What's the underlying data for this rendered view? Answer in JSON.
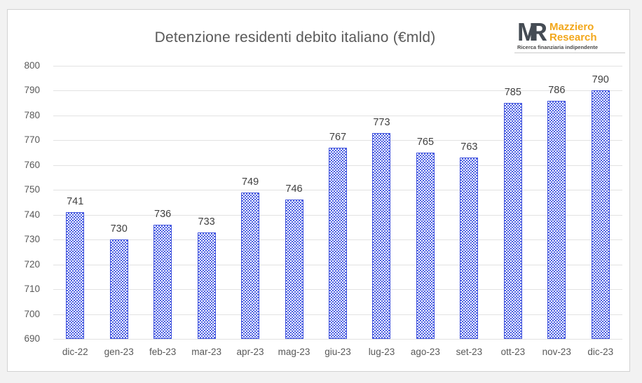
{
  "page": {
    "background": "#f2f2f2",
    "card_border": "#d2d2d2"
  },
  "header": {
    "title": "Detenzione residenti debito italiano (€mld)"
  },
  "logo": {
    "monogram_m": "M",
    "monogram_r": "R",
    "name_line1": "Mazziero",
    "name_line2": "Research",
    "tagline": "Ricerca finanziaria indipendente",
    "accent_color": "#f2a71b",
    "monogram_color": "#454c54"
  },
  "chart_data": {
    "type": "bar",
    "title": "Detenzione residenti debito italiano (€mld)",
    "categories": [
      "dic-22",
      "gen-23",
      "feb-23",
      "mar-23",
      "apr-23",
      "mag-23",
      "giu-23",
      "lug-23",
      "ago-23",
      "set-23",
      "ott-23",
      "nov-23",
      "dic-23"
    ],
    "values": [
      741,
      730,
      736,
      733,
      749,
      746,
      767,
      773,
      765,
      763,
      785,
      786,
      790
    ],
    "xlabel": "",
    "ylabel": "",
    "ylim": [
      690,
      800
    ],
    "ytick_step": 10,
    "grid": true,
    "legend": "none",
    "data_labels": true,
    "bar_border_color": "#4355dd",
    "bar_pattern_color": "#4d61e3",
    "bar_pattern": "checkerboard",
    "gridline_color": "#e2e2e2",
    "tick_color": "#595959",
    "label_color": "#3f3f3f"
  }
}
